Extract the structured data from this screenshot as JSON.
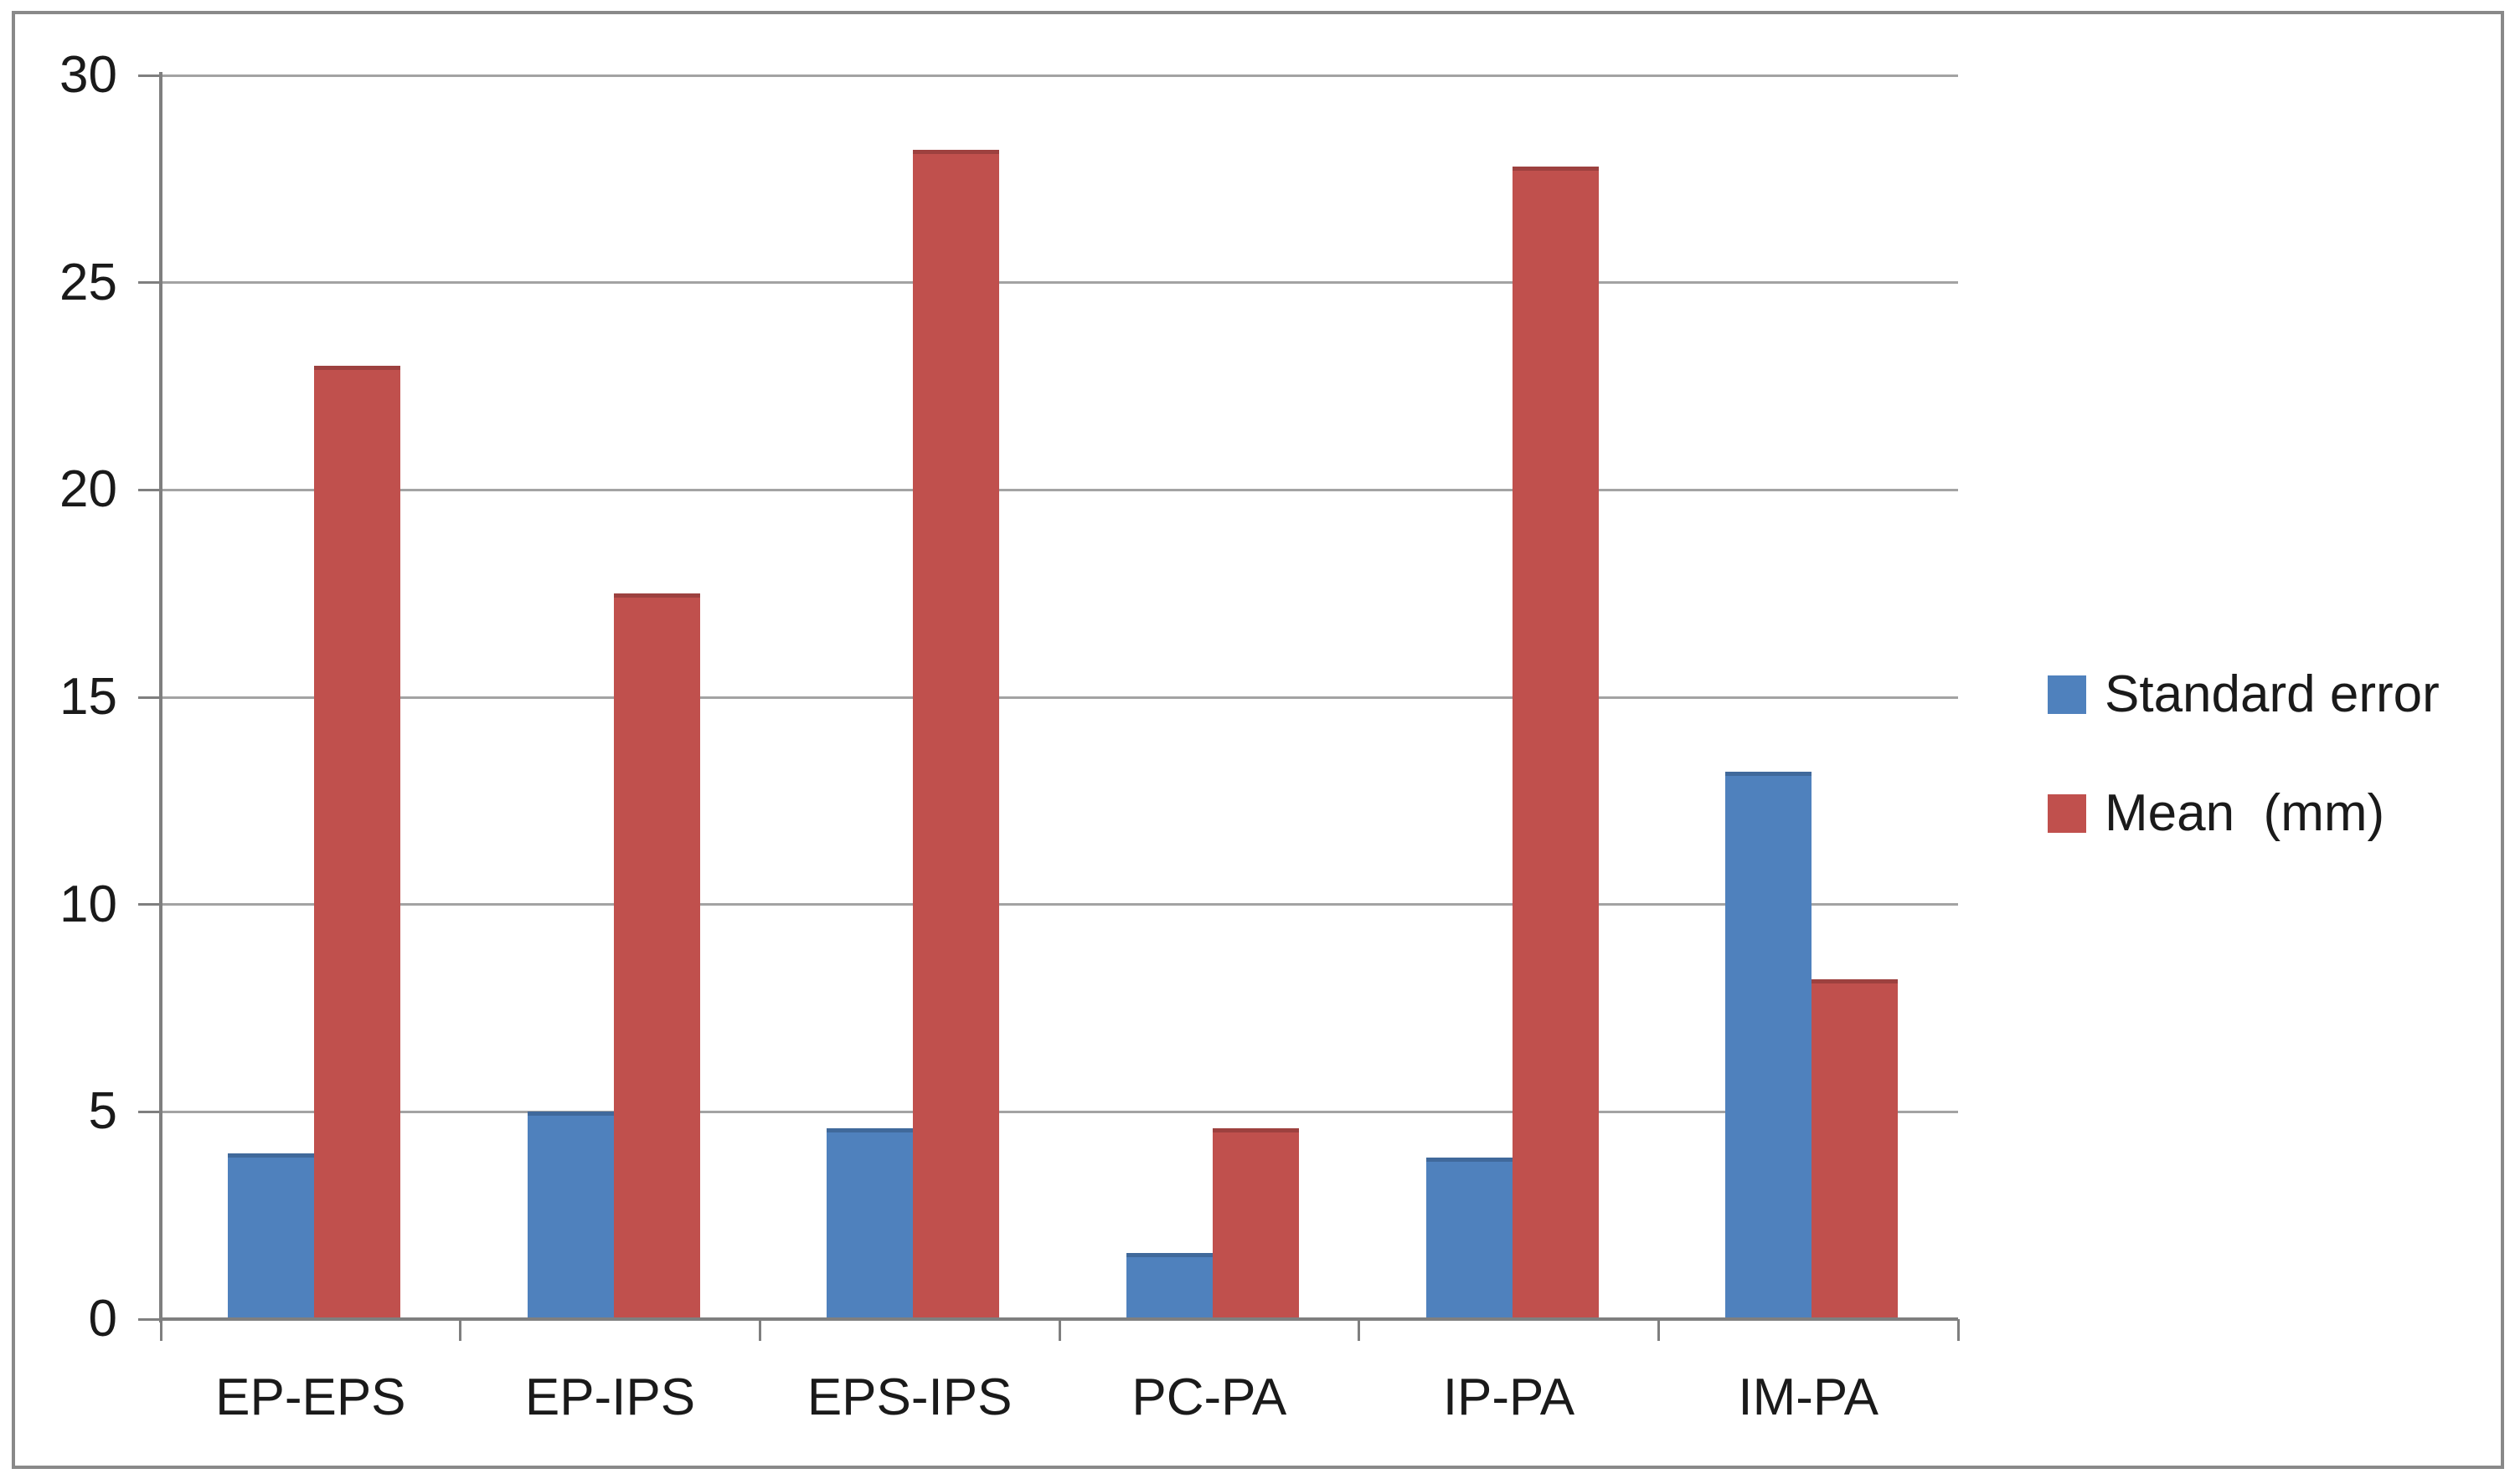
{
  "chart_data": {
    "type": "bar",
    "title": "",
    "xlabel": "",
    "ylabel": "",
    "categories": [
      "EP-EPS",
      "EP-IPS",
      "EPS-IPS",
      "PC-PA",
      "IP-PA",
      "IM-PA"
    ],
    "series": [
      {
        "name": "Standard error",
        "color": "#4F81BD",
        "values": [
          4.0,
          5.0,
          4.6,
          1.6,
          3.9,
          13.2
        ]
      },
      {
        "name": "Mean  (mm)",
        "color": "#C0504D",
        "values": [
          23.0,
          17.5,
          28.2,
          4.6,
          27.8,
          8.2
        ]
      }
    ],
    "ylim": [
      0,
      30
    ],
    "yticks": [
      0,
      5,
      10,
      15,
      20,
      25,
      30
    ],
    "grid": true,
    "legend_position": "right"
  },
  "colors": {
    "grid": "#A3A3A3",
    "axis": "#7F7F7F",
    "text": "#1A1A1A",
    "frame": "#898989",
    "background": "#FFFFFF",
    "series_blue": "#4F81BD",
    "series_red": "#C0504D"
  }
}
